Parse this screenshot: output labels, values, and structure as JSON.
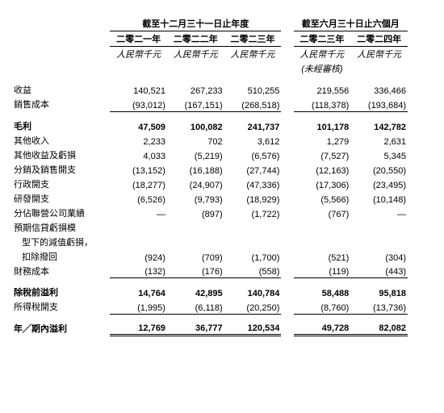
{
  "headers": {
    "group1": "截至十二月三十一日止年度",
    "group2": "截至六月三十日止六個月",
    "y2021": "二零二一年",
    "y2022": "二零二二年",
    "y2023": "二零二三年",
    "h2023": "二零二三年",
    "h2024": "二零二四年",
    "unit": "人民幣千元",
    "unaudited": "(未經審核)"
  },
  "rows": {
    "revenue": {
      "label": "收益",
      "c": [
        "140,521",
        "267,233",
        "510,255",
        "219,556",
        "336,466"
      ]
    },
    "cost_of_sales": {
      "label": "銷售成本",
      "c": [
        "(93,012)",
        "(167,151)",
        "(268,518)",
        "(118,378)",
        "(193,684)"
      ]
    },
    "gross_profit": {
      "label": "毛利",
      "c": [
        "47,509",
        "100,082",
        "241,737",
        "101,178",
        "142,782"
      ]
    },
    "other_income": {
      "label": "其他收入",
      "c": [
        "2,233",
        "702",
        "3,612",
        "1,279",
        "2,631"
      ]
    },
    "other_gains": {
      "label": "其他收益及虧損",
      "c": [
        "4,033",
        "(5,219)",
        "(6,576)",
        "(7,527)",
        "5,345"
      ]
    },
    "distribution": {
      "label": "分銷及銷售開支",
      "c": [
        "(13,152)",
        "(16,188)",
        "(27,744)",
        "(12,163)",
        "(20,550)"
      ]
    },
    "admin": {
      "label": "行政開支",
      "c": [
        "(18,277)",
        "(24,907)",
        "(47,336)",
        "(17,306)",
        "(23,495)"
      ]
    },
    "rd": {
      "label": "研發開支",
      "c": [
        "(6,526)",
        "(9,793)",
        "(18,929)",
        "(5,566)",
        "(10,148)"
      ]
    },
    "share_assoc": {
      "label": "分佔聯營公司業績",
      "c": [
        "—",
        "(897)",
        "(1,722)",
        "(767)",
        "—"
      ]
    },
    "ecl_line1": {
      "label": "預期信貸虧損模"
    },
    "ecl_line2": {
      "label": "型下的減值虧損，"
    },
    "ecl_line3": {
      "label": "扣除撥回",
      "c": [
        "(924)",
        "(709)",
        "(1,700)",
        "(521)",
        "(304)"
      ]
    },
    "finance_cost": {
      "label": "財務成本",
      "c": [
        "(132)",
        "(176)",
        "(558)",
        "(119)",
        "(443)"
      ]
    },
    "pbt": {
      "label": "除稅前溢利",
      "c": [
        "14,764",
        "42,895",
        "140,784",
        "58,488",
        "95,818"
      ]
    },
    "tax": {
      "label": "所得稅開支",
      "c": [
        "(1,995)",
        "(6,118)",
        "(20,250)",
        "(8,760)",
        "(13,736)"
      ]
    },
    "profit": {
      "label": "年╱期內溢利",
      "c": [
        "12,769",
        "36,777",
        "120,534",
        "49,728",
        "82,082"
      ]
    }
  }
}
